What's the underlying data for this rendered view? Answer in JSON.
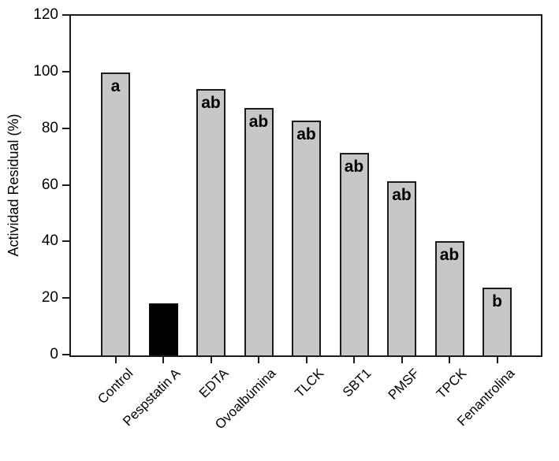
{
  "chart_data": {
    "type": "bar",
    "title": "",
    "ylabel": "Actividad Residual (%)",
    "xlabel": "",
    "ylim": [
      0,
      120
    ],
    "yticks": [
      0,
      20,
      40,
      60,
      80,
      100,
      120
    ],
    "categories": [
      "Control",
      "Pespstatin A",
      "EDTA",
      "Ovoalbúmina",
      "TLCK",
      "SBT1",
      "PMSF",
      "TPCK",
      "Fenantrolina"
    ],
    "values": [
      100,
      18.5,
      94,
      87.5,
      83,
      71.5,
      61.5,
      40.5,
      24
    ],
    "significance_letters": [
      "a",
      "",
      "ab",
      "ab",
      "ab",
      "ab",
      "ab",
      "ab",
      "b"
    ],
    "bar_fills": [
      "gray",
      "black",
      "gray",
      "gray",
      "gray",
      "gray",
      "gray",
      "gray",
      "gray"
    ],
    "grid": false,
    "legend": null,
    "layout_hints": {
      "bars_descend_left_to_right_except_second": true,
      "x_labels_rotated_45deg": true,
      "full_plot_box_border": true
    },
    "colors": {
      "bar_fill_gray": "#c7c7c7",
      "bar_fill_black": "#000000",
      "bar_border": "#1c1c1c",
      "axis": "#1c1c1c",
      "text": "#000000",
      "background": "#ffffff"
    }
  }
}
